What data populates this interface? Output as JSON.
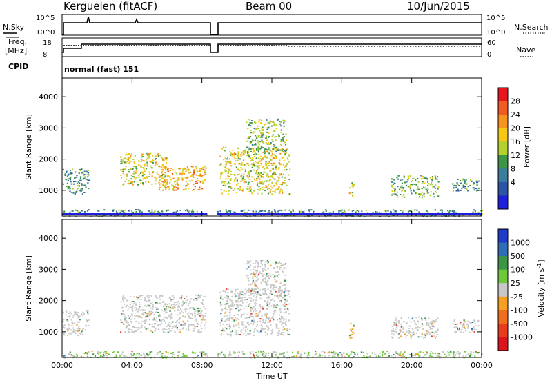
{
  "header": {
    "station": "Kerguelen (fitACF)",
    "beam": "Beam 00",
    "date": "10/Jun/2015"
  },
  "top_panels": {
    "nsky_label": "N.Sky",
    "nsky_ticks": [
      "10^5",
      "10^0"
    ],
    "nsearch_label": "N.Search",
    "nsearch_ticks": [
      "10^5",
      "10^0"
    ],
    "freq_label_line1": "Freq.",
    "freq_label_line2": "[MHz]",
    "freq_ticks": [
      "18",
      "8"
    ],
    "nave_label": "Nave",
    "nave_ticks": [
      "60",
      "0"
    ],
    "cpid_label": "CPID",
    "cpid_text": "normal (fast) 151"
  },
  "chart_data": [
    {
      "type": "heatmap",
      "name": "power",
      "ylabel": "Slant Range [km]",
      "xlabel": "",
      "x_ticks": [
        "00:00",
        "04:00",
        "08:00",
        "12:00",
        "16:00",
        "20:00",
        "00:00"
      ],
      "xlim_hours": [
        0,
        24
      ],
      "y_ticks": [
        1000,
        2000,
        3000,
        4000
      ],
      "ylim_km": [
        180,
        4600
      ],
      "colorbar": {
        "label": "Power [dB]",
        "ticks": [
          "28",
          "24",
          "20",
          "16",
          "12",
          "8",
          "4"
        ],
        "colors": [
          "#e8141e",
          "#f05a23",
          "#f7941d",
          "#f5c814",
          "#b4d22d",
          "#3c9646",
          "#3a7d9c",
          "#2d55a5",
          "#1e1edc"
        ]
      },
      "gaps_hours": [
        [
          8.3,
          8.85
        ]
      ],
      "echo_regions": [
        {
          "t0": 0.0,
          "t1": 1.5,
          "r0": 900,
          "r1": 1700,
          "power_db": 8
        },
        {
          "t0": 3.3,
          "t1": 6.0,
          "r0": 1200,
          "r1": 2200,
          "power_db": 18
        },
        {
          "t0": 5.5,
          "t1": 8.2,
          "r0": 1000,
          "r1": 1800,
          "power_db": 20
        },
        {
          "t0": 9.0,
          "t1": 13.0,
          "r0": 900,
          "r1": 2400,
          "power_db": 18
        },
        {
          "t0": 10.5,
          "t1": 12.8,
          "r0": 2200,
          "r1": 3300,
          "power_db": 12
        },
        {
          "t0": 16.4,
          "t1": 16.7,
          "r0": 800,
          "r1": 1300,
          "power_db": 16
        },
        {
          "t0": 18.8,
          "t1": 21.5,
          "r0": 800,
          "r1": 1500,
          "power_db": 14
        },
        {
          "t0": 22.3,
          "t1": 23.8,
          "r0": 1000,
          "r1": 1400,
          "power_db": 10
        },
        {
          "t0": 0.0,
          "t1": 24.0,
          "r0": 180,
          "r1": 400,
          "power_db": 10
        }
      ]
    },
    {
      "type": "heatmap",
      "name": "velocity",
      "ylabel": "Slant Range [km]",
      "xlabel": "Time UT",
      "x_ticks": [
        "00:00",
        "04:00",
        "08:00",
        "12:00",
        "16:00",
        "20:00",
        "00:00"
      ],
      "xlim_hours": [
        0,
        24
      ],
      "y_ticks": [
        1000,
        2000,
        3000,
        4000
      ],
      "ylim_km": [
        180,
        4600
      ],
      "colorbar": {
        "label": "Velocity  [m s^-1]",
        "ticks": [
          "1000",
          "500",
          "100",
          "25",
          "-25",
          "-100",
          "-500",
          "-1000"
        ],
        "colors": [
          "#1e3cc8",
          "#2d6eb4",
          "#3c9646",
          "#6ec83c",
          "#c8c8c8",
          "#f5a01e",
          "#f06e1e",
          "#e83c1e",
          "#dc141e"
        ]
      },
      "gaps_hours": [
        [
          8.3,
          8.85
        ]
      ],
      "echo_regions": [
        {
          "t0": 0.0,
          "t1": 1.5,
          "r0": 900,
          "r1": 1700,
          "velocity": 0
        },
        {
          "t0": 3.3,
          "t1": 8.2,
          "r0": 1000,
          "r1": 2200,
          "velocity": 0
        },
        {
          "t0": 9.0,
          "t1": 13.0,
          "r0": 900,
          "r1": 2400,
          "velocity": 0
        },
        {
          "t0": 10.5,
          "t1": 12.8,
          "r0": 2200,
          "r1": 3300,
          "velocity": 0
        },
        {
          "t0": 16.4,
          "t1": 16.7,
          "r0": 800,
          "r1": 1300,
          "velocity": -100
        },
        {
          "t0": 18.8,
          "t1": 21.5,
          "r0": 800,
          "r1": 1500,
          "velocity": 0
        },
        {
          "t0": 22.3,
          "t1": 23.8,
          "r0": 1000,
          "r1": 1400,
          "velocity": 0
        },
        {
          "t0": 0.0,
          "t1": 24.0,
          "r0": 180,
          "r1": 400,
          "velocity": 50
        }
      ]
    }
  ]
}
